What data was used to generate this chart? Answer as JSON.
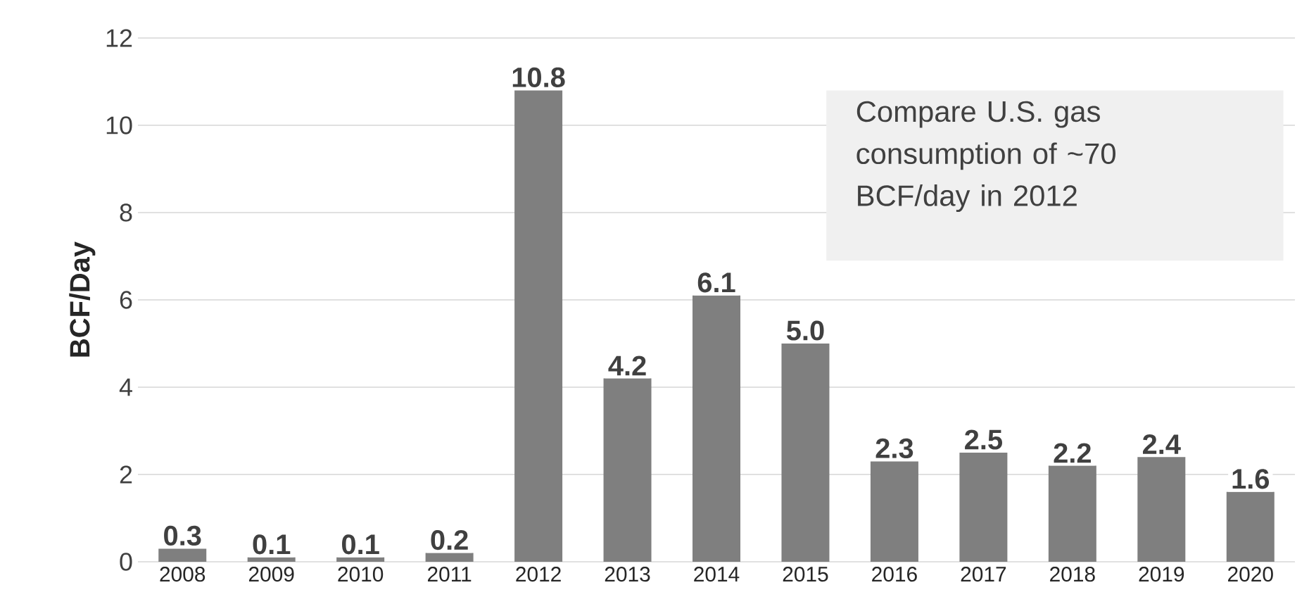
{
  "chart_data": {
    "type": "bar",
    "ylabel": "BCF/Day",
    "categories": [
      "2008",
      "2009",
      "2010",
      "2011",
      "2012",
      "2013",
      "2014",
      "2015",
      "2016",
      "2017",
      "2018",
      "2019",
      "2020"
    ],
    "values": [
      0.3,
      0.1,
      0.1,
      0.2,
      10.8,
      4.2,
      6.1,
      5.0,
      2.3,
      2.5,
      2.2,
      2.4,
      1.6
    ],
    "value_labels": [
      "0.3",
      "0.1",
      "0.1",
      "0.2",
      "10.8",
      "4.2",
      "6.1",
      "5.0",
      "2.3",
      "2.5",
      "2.2",
      "2.4",
      "1.6"
    ],
    "color": "#7f7f7f",
    "ylim": [
      0,
      12
    ],
    "yticks": [
      0,
      2,
      4,
      6,
      8,
      10,
      12
    ],
    "grid": "y",
    "annotations": [
      "Compare U.S. gas consumption of ~70 BCF/day in 2012"
    ]
  }
}
